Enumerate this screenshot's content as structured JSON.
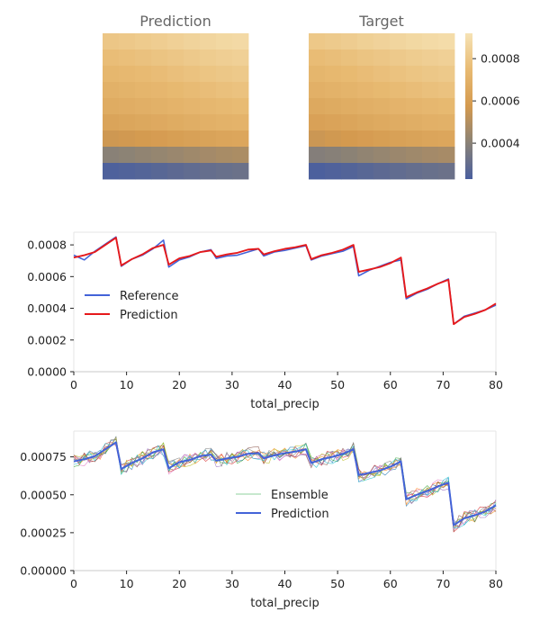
{
  "chart_data": [
    {
      "type": "heatmap",
      "title": "Prediction",
      "rows": 9,
      "cols": 9,
      "row_values": [
        0.00084,
        0.0008,
        0.00077,
        0.00074,
        0.00071,
        0.00067,
        0.0006,
        0.00044,
        0.00028
      ],
      "col_gradient": [
        -4e-05,
        -3.2e-05,
        -2.2e-05,
        -1.2e-05,
        0.0,
        1.2e-05,
        2.2e-05,
        3.2e-05,
        4e-05
      ]
    },
    {
      "type": "heatmap",
      "title": "Target",
      "rows": 9,
      "cols": 9,
      "row_values": [
        0.00085,
        0.0008,
        0.00077,
        0.00074,
        0.0007,
        0.00066,
        0.0006,
        0.00043,
        0.00028
      ],
      "col_gradient": [
        -4.5e-05,
        -3.5e-05,
        -2.5e-05,
        -1.2e-05,
        0.0,
        1.2e-05,
        2.2e-05,
        3.2e-05,
        4e-05
      ],
      "colorbar": {
        "min": 0.00023,
        "max": 0.00092,
        "ticks": [
          "0.0004",
          "0.0006",
          "0.0008"
        ],
        "tick_values": [
          0.0004,
          0.0006,
          0.0008
        ],
        "colormap": [
          "#4a5f9e",
          "#8a8276",
          "#d49a4f",
          "#e8ba72",
          "#f6e3b5"
        ]
      }
    },
    {
      "type": "line",
      "xlabel": "total_precip",
      "ylabel": "",
      "xlim": [
        0,
        80
      ],
      "ylim": [
        0,
        0.00088
      ],
      "xticks": [
        "0",
        "10",
        "20",
        "30",
        "40",
        "50",
        "60",
        "70",
        "80"
      ],
      "yticks": [
        "0.0000",
        "0.0002",
        "0.0004",
        "0.0006",
        "0.0008"
      ],
      "ytick_values": [
        0,
        0.0002,
        0.0004,
        0.0006,
        0.0008
      ],
      "legend": [
        "Reference",
        "Prediction"
      ],
      "legend_position": "center-left",
      "series": [
        {
          "name": "Reference",
          "color": "#4363d8",
          "x": [
            0,
            2,
            4,
            6,
            8,
            9,
            11,
            13,
            15,
            17,
            18,
            20,
            22,
            24,
            26,
            27,
            29,
            31,
            33,
            35,
            36,
            38,
            40,
            42,
            44,
            45,
            47,
            49,
            51,
            53,
            54,
            56,
            58,
            60,
            62,
            63,
            65,
            67,
            69,
            71,
            72,
            74,
            76,
            78,
            80
          ],
          "values": [
            0.000735,
            0.000705,
            0.00076,
            0.000805,
            0.00085,
            0.000665,
            0.00071,
            0.000735,
            0.000775,
            0.00083,
            0.00066,
            0.000705,
            0.000725,
            0.000755,
            0.00077,
            0.000715,
            0.00073,
            0.000735,
            0.000755,
            0.000775,
            0.00073,
            0.000755,
            0.000765,
            0.00078,
            0.000795,
            0.000705,
            0.00073,
            0.000745,
            0.00076,
            0.00079,
            0.000605,
            0.00064,
            0.000665,
            0.00069,
            0.000705,
            0.00046,
            0.000495,
            0.00052,
            0.000555,
            0.000585,
            0.0003,
            0.00035,
            0.00037,
            0.00039,
            0.00042
          ]
        },
        {
          "name": "Prediction",
          "color": "#e6191b",
          "x": [
            0,
            2,
            4,
            6,
            8,
            9,
            11,
            13,
            15,
            17,
            18,
            20,
            22,
            24,
            26,
            27,
            29,
            31,
            33,
            35,
            36,
            38,
            40,
            42,
            44,
            45,
            47,
            49,
            51,
            53,
            54,
            56,
            58,
            60,
            62,
            63,
            65,
            67,
            69,
            71,
            72,
            74,
            76,
            78,
            80
          ],
          "values": [
            0.00072,
            0.000735,
            0.000755,
            0.0008,
            0.000845,
            0.00067,
            0.00071,
            0.00074,
            0.00078,
            0.0008,
            0.000675,
            0.000715,
            0.00073,
            0.000755,
            0.000765,
            0.000725,
            0.00074,
            0.00075,
            0.00077,
            0.000775,
            0.00074,
            0.00076,
            0.000775,
            0.000785,
            0.0008,
            0.00071,
            0.000735,
            0.00075,
            0.00077,
            0.0008,
            0.00063,
            0.000645,
            0.00066,
            0.000685,
            0.00072,
            0.00047,
            0.0005,
            0.000525,
            0.000555,
            0.00058,
            0.0003,
            0.000345,
            0.000365,
            0.00039,
            0.00043
          ]
        }
      ]
    },
    {
      "type": "line",
      "xlabel": "total_precip",
      "ylabel": "",
      "xlim": [
        0,
        80
      ],
      "ylim": [
        0,
        0.00092
      ],
      "xticks": [
        "0",
        "10",
        "20",
        "30",
        "40",
        "50",
        "60",
        "70",
        "80"
      ],
      "yticks": [
        "0.00000",
        "0.00025",
        "0.00050",
        "0.00075"
      ],
      "ytick_values": [
        0,
        0.00025,
        0.0005,
        0.00075
      ],
      "legend": [
        "Ensemble",
        "Prediction"
      ],
      "legend_position": "center",
      "ensemble_members": 10,
      "ensemble_colors": [
        "#1f77b4",
        "#ff7f0e",
        "#2ca02c",
        "#d62728",
        "#9467bd",
        "#8c564b",
        "#e377c2",
        "#7f7f7f",
        "#bcbd22",
        "#17becf"
      ],
      "prediction_color": "#4363d8",
      "ensemble_legend_color": "#8fd19e",
      "prediction": {
        "x": [
          0,
          2,
          4,
          6,
          8,
          9,
          11,
          13,
          15,
          17,
          18,
          20,
          22,
          24,
          26,
          27,
          29,
          31,
          33,
          35,
          36,
          38,
          40,
          42,
          44,
          45,
          47,
          49,
          51,
          53,
          54,
          56,
          58,
          60,
          62,
          63,
          65,
          67,
          69,
          71,
          72,
          74,
          76,
          78,
          80
        ],
        "values": [
          0.00072,
          0.000735,
          0.000755,
          0.0008,
          0.000845,
          0.00067,
          0.00071,
          0.00074,
          0.00078,
          0.0008,
          0.000675,
          0.000715,
          0.00073,
          0.000755,
          0.000765,
          0.000725,
          0.00074,
          0.00075,
          0.00077,
          0.000775,
          0.00074,
          0.00076,
          0.000775,
          0.000785,
          0.0008,
          0.00071,
          0.000735,
          0.00075,
          0.00077,
          0.0008,
          0.00063,
          0.000645,
          0.00066,
          0.000685,
          0.00072,
          0.00047,
          0.0005,
          0.000525,
          0.000555,
          0.00058,
          0.0003,
          0.000345,
          0.000365,
          0.00039,
          0.00043
        ]
      }
    }
  ]
}
